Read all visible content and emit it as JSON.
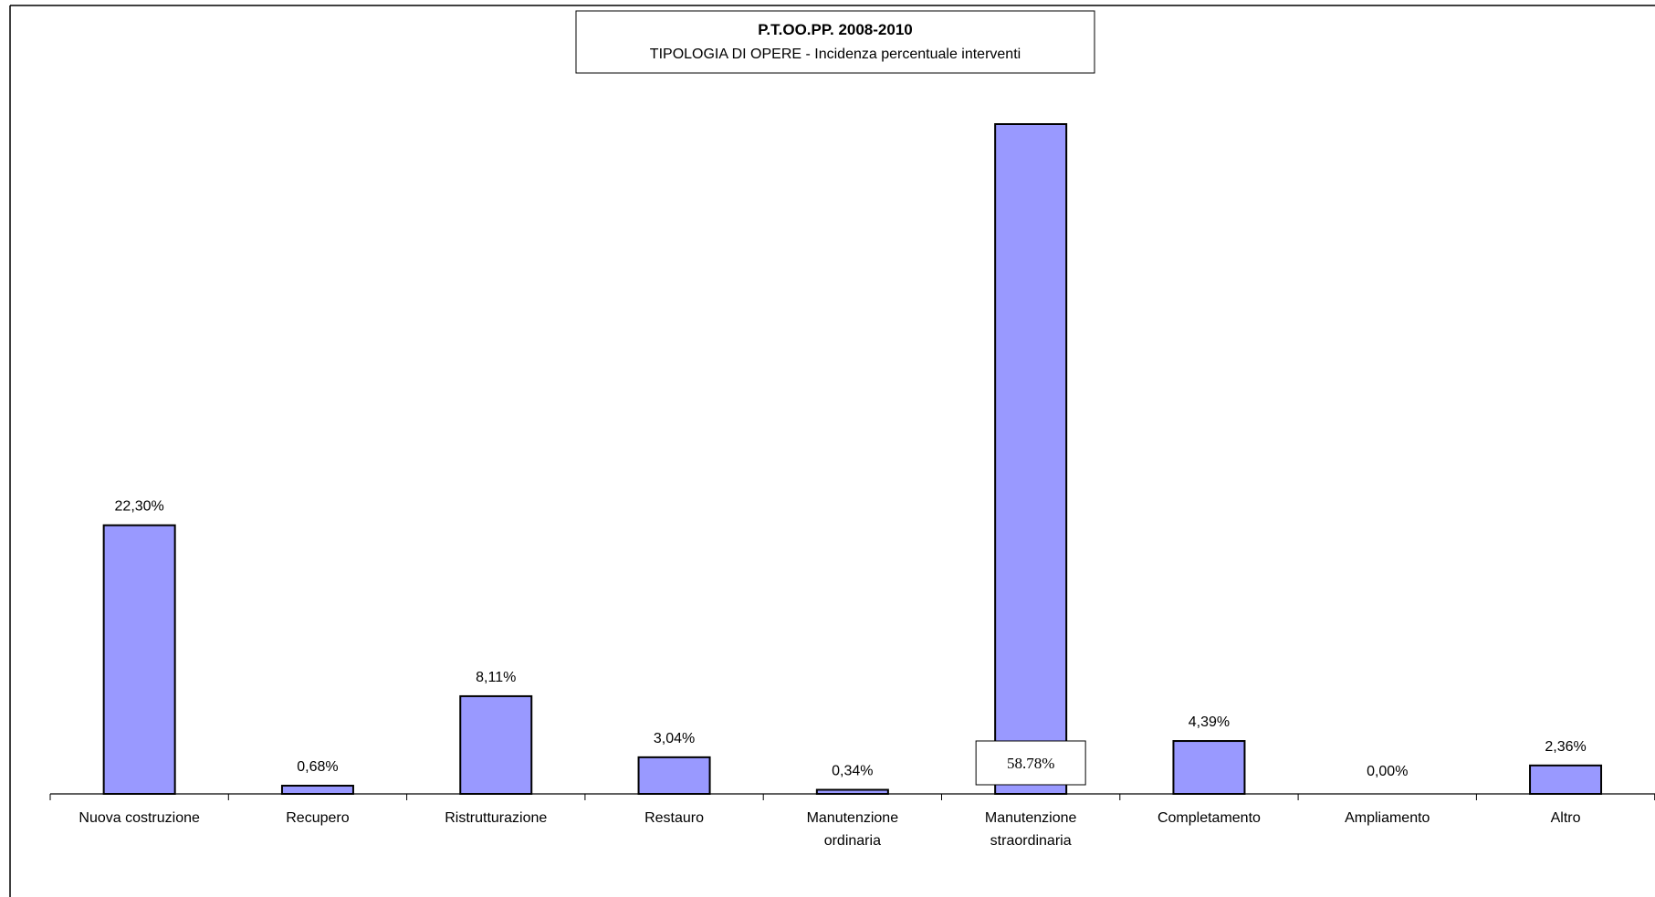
{
  "chart_data": {
    "type": "bar",
    "title": "P.T.OO.PP. 2008-2010",
    "subtitle": "TIPOLOGIA DI OPERE - Incidenza percentuale interventi",
    "categories": [
      [
        "Nuova costruzione"
      ],
      [
        "Recupero"
      ],
      [
        "Ristrutturazione"
      ],
      [
        "Restauro"
      ],
      [
        "Manutenzione",
        "ordinaria"
      ],
      [
        "Manutenzione",
        "straordinaria"
      ],
      [
        "Completamento"
      ],
      [
        "Ampliamento"
      ],
      [
        "Altro"
      ]
    ],
    "values": [
      22.3,
      0.68,
      8.11,
      3.04,
      0.34,
      58.78,
      4.39,
      0.0,
      2.36
    ],
    "value_labels": [
      "22,30%",
      "0,68%",
      "8,11%",
      "3,04%",
      "0,34%",
      "58.78%",
      "4,39%",
      "0,00%",
      "2,36%"
    ],
    "boxed_label_index": 5,
    "bar_color": "#9999ff",
    "bar_outline": "#000000",
    "ylim": [
      0,
      55.6
    ],
    "grid": false,
    "legend": "none"
  }
}
